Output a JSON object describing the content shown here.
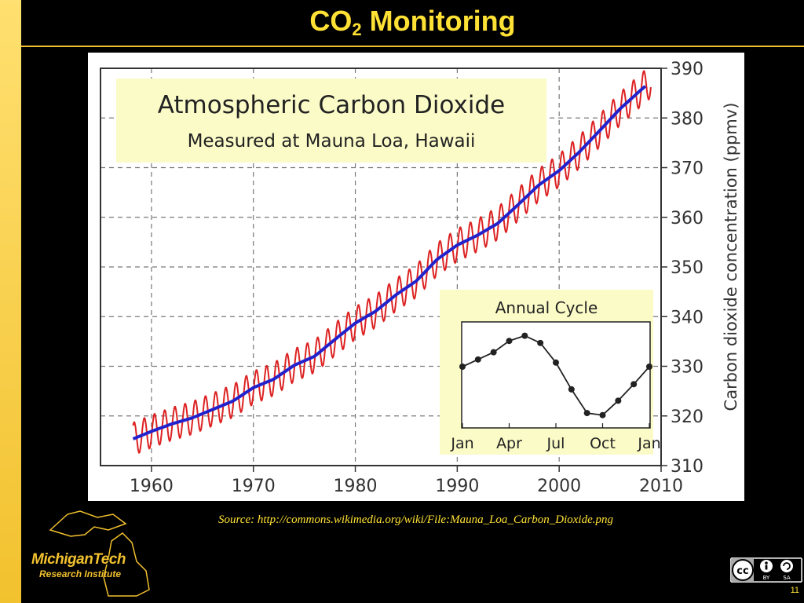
{
  "slide": {
    "title_main": "CO",
    "title_sub": "2",
    "title_rest": " Monitoring",
    "source": "Source: http://commons.wikimedia.org/wiki/File:Mauna_Loa_Carbon_Dioxide.png",
    "logo_main": "MichiganTech",
    "logo_sub": "Research Institute",
    "license": {
      "cc": "cc",
      "by": "BY",
      "sa": "SA"
    },
    "page_number": "11"
  },
  "colors": {
    "accent": "#ffe135",
    "monthly_line": "#dd2222",
    "trend_line": "#2222cc",
    "title_box": "#fbfbc8"
  },
  "chart_data": [
    {
      "type": "line",
      "title": "Atmospheric Carbon Dioxide",
      "subtitle": "Measured at Mauna Loa, Hawaii",
      "xlabel": "",
      "ylabel": "Carbon dioxide concentration (ppmv)",
      "xlim": [
        1955,
        2010
      ],
      "ylim": [
        310,
        390
      ],
      "x_ticks": [
        "1960",
        "1970",
        "1980",
        "1990",
        "2000",
        "2010"
      ],
      "y_ticks": [
        "310",
        "320",
        "330",
        "340",
        "350",
        "360",
        "370",
        "380",
        "390"
      ],
      "grid": true,
      "trend": {
        "x": [
          1958,
          1960,
          1962,
          1964,
          1966,
          1968,
          1970,
          1972,
          1974,
          1976,
          1978,
          1980,
          1982,
          1984,
          1986,
          1988,
          1990,
          1992,
          1994,
          1996,
          1998,
          2000,
          2002,
          2004,
          2006,
          2008,
          2009
        ],
        "y": [
          315.2,
          316.9,
          318.4,
          319.6,
          321.3,
          323.0,
          325.7,
          327.4,
          330.2,
          332.0,
          335.4,
          338.7,
          341.1,
          344.4,
          347.2,
          351.5,
          354.4,
          356.4,
          358.8,
          362.6,
          366.5,
          369.4,
          373.2,
          377.5,
          381.9,
          385.6,
          387.4
        ]
      },
      "seasonal_amplitude_ppmv": 3.3
    },
    {
      "type": "line",
      "title": "Annual Cycle",
      "x_ticks": [
        "Jan",
        "Apr",
        "Jul",
        "Oct",
        "Jan"
      ],
      "x": [
        1,
        2,
        3,
        4,
        5,
        6,
        7,
        8,
        9,
        10,
        11,
        12,
        13
      ],
      "values": [
        0.6,
        1.3,
        2.0,
        3.1,
        3.6,
        2.9,
        1.0,
        -1.6,
        -3.9,
        -4.1,
        -2.7,
        -1.1,
        0.6
      ]
    }
  ]
}
